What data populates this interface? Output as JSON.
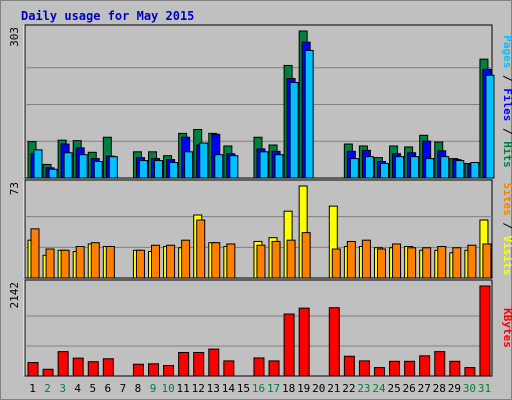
{
  "chart_data": {
    "type": "bar",
    "title": "Daily usage for May 2015",
    "categories": [
      "1",
      "2",
      "3",
      "4",
      "5",
      "6",
      "7",
      "8",
      "9",
      "10",
      "11",
      "12",
      "13",
      "14",
      "15",
      "16",
      "17",
      "18",
      "19",
      "20",
      "21",
      "22",
      "23",
      "24",
      "25",
      "26",
      "27",
      "28",
      "29",
      "30",
      "31"
    ],
    "weekend_days": [
      2,
      3,
      9,
      10,
      16,
      17,
      23,
      24,
      30,
      31
    ],
    "colors": {
      "hits": "#008040",
      "files": "#0000ff",
      "pages": "#00c0ff",
      "visits": "#ffff00",
      "sites": "#ff8000",
      "kbytes": "#ff0000",
      "weekday_label": "#000000",
      "weekend_label": "#008040"
    },
    "panels": [
      {
        "name": "hits_files_pages",
        "ymax_label": "303",
        "ymax": 303,
        "side_label": [
          {
            "text": "Pages",
            "color": "#00c0ff"
          },
          {
            "text": " / ",
            "color": "#000000"
          },
          {
            "text": "Files",
            "color": "#0000ff"
          },
          {
            "text": " / ",
            "color": "#000000"
          },
          {
            "text": "Hits",
            "color": "#008040"
          }
        ],
        "series": [
          {
            "name": "Hits",
            "color": "#008040",
            "values": [
              75,
              28,
              78,
              77,
              53,
              84,
              0,
              54,
              54,
              46,
              92,
              100,
              92,
              66,
              0,
              84,
              68,
              232,
              303,
              0,
              0,
              70,
              66,
              42,
              66,
              64,
              88,
              74,
              40,
              30,
              245
            ]
          },
          {
            "name": "Files",
            "color": "#0000ff",
            "values": [
              50,
              21,
              70,
              62,
              40,
              45,
              0,
              42,
              40,
              38,
              84,
              68,
              90,
              50,
              0,
              60,
              55,
              205,
              280,
              0,
              0,
              55,
              57,
              34,
              50,
              52,
              76,
              56,
              38,
              28,
              224
            ]
          },
          {
            "name": "Pages",
            "color": "#00c0ff",
            "values": [
              58,
              18,
              52,
              48,
              34,
              44,
              0,
              36,
              36,
              32,
              54,
              72,
              48,
              46,
              0,
              54,
              48,
              197,
              263,
              0,
              0,
              40,
              44,
              30,
              44,
              44,
              40,
              44,
              36,
              32,
              212
            ]
          }
        ]
      },
      {
        "name": "visits_sites",
        "ymax_label": "73",
        "ymax": 73,
        "side_label": [
          {
            "text": "Sites",
            "color": "#ff8000"
          },
          {
            "text": " / ",
            "color": "#000000"
          },
          {
            "text": "Visits",
            "color": "#ffff00"
          }
        ],
        "series": [
          {
            "name": "Visits",
            "color": "#ffff00",
            "values": [
              30,
              18,
              22,
              21,
              27,
              25,
              0,
              22,
              21,
              25,
              24,
              50,
              28,
              25,
              0,
              29,
              32,
              53,
              73,
              0,
              57,
              25,
              25,
              24,
              24,
              25,
              22,
              22,
              20,
              22,
              46
            ]
          },
          {
            "name": "Sites",
            "color": "#ff8000",
            "values": [
              39,
              23,
              22,
              25,
              28,
              25,
              0,
              22,
              26,
              26,
              30,
              46,
              28,
              27,
              0,
              26,
              29,
              30,
              36,
              0,
              23,
              29,
              30,
              23,
              27,
              24,
              24,
              25,
              24,
              26,
              27
            ]
          }
        ]
      },
      {
        "name": "kbytes",
        "ymax_label": "2142",
        "ymax": 2142,
        "side_label": [
          {
            "text": "KBytes",
            "color": "#ff0000"
          }
        ],
        "series": [
          {
            "name": "KBytes",
            "color": "#ff0000",
            "values": [
              320,
              160,
              580,
              425,
              340,
              410,
              0,
              280,
              290,
              250,
              560,
              560,
              640,
              360,
              0,
              430,
              360,
              1475,
              1615,
              0,
              1625,
              470,
              360,
              200,
              350,
              350,
              480,
              580,
              350,
              200,
              2142
            ]
          }
        ]
      }
    ]
  }
}
